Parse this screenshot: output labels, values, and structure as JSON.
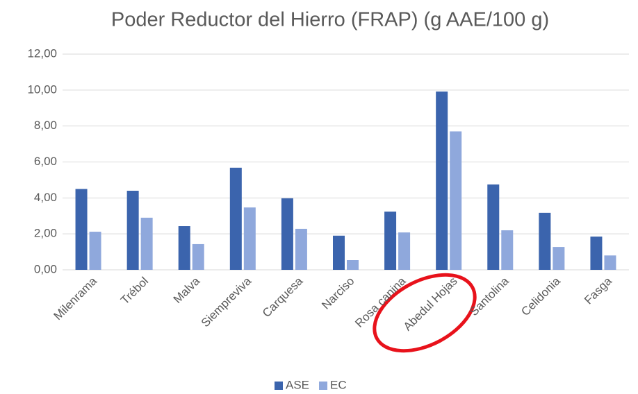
{
  "chart_data": {
    "type": "bar",
    "title": "Poder Reductor del Hierro (FRAP) (g AAE/100 g)",
    "categories": [
      "Milenrama",
      "Trébol",
      "Malva",
      "Siempreviva",
      "Carquesa",
      "Narciso",
      "Rosa canina",
      "Abedul Hojas",
      "Santolina",
      "Celidonia",
      "Fasga"
    ],
    "series": [
      {
        "name": "ASE",
        "color": "#3b64ad",
        "values": [
          4.5,
          4.4,
          2.43,
          5.68,
          3.98,
          1.9,
          3.24,
          9.92,
          4.75,
          3.17,
          1.85
        ]
      },
      {
        "name": "EC",
        "color": "#8fa8dc",
        "values": [
          2.12,
          2.9,
          1.43,
          3.47,
          2.28,
          0.54,
          2.08,
          7.7,
          2.2,
          1.27,
          0.8
        ]
      }
    ],
    "ylim": [
      0,
      12
    ],
    "yticks": [
      {
        "value": 0,
        "label": "0,00"
      },
      {
        "value": 2,
        "label": "2,00"
      },
      {
        "value": 4,
        "label": "4,00"
      },
      {
        "value": 6,
        "label": "6,00"
      },
      {
        "value": 8,
        "label": "8,00"
      },
      {
        "value": 10,
        "label": "10,00"
      },
      {
        "value": 12,
        "label": "12,00"
      }
    ],
    "grid": true,
    "legend": "bottom"
  }
}
